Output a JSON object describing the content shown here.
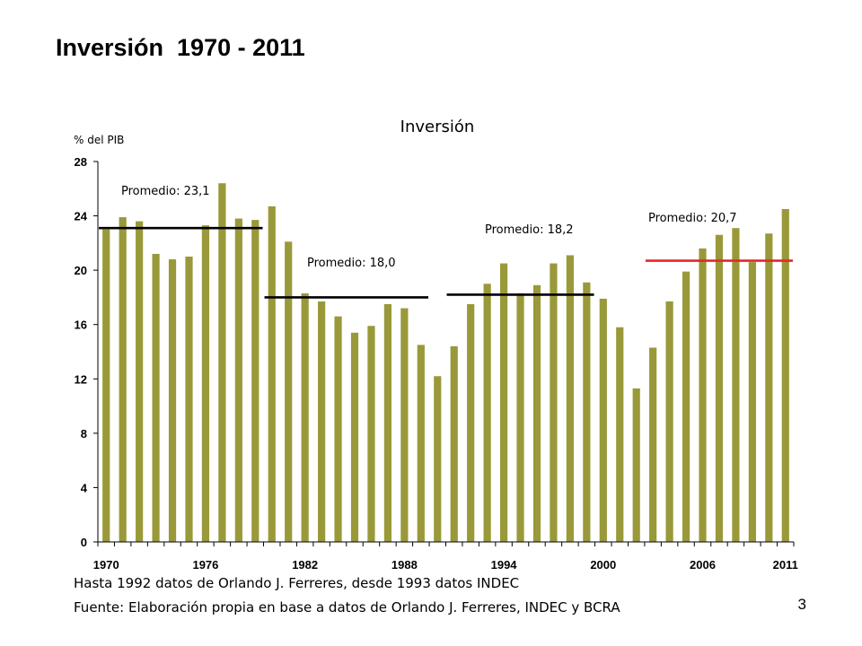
{
  "slide": {
    "title": "Inversión  1970 - 2011",
    "page_number": "3",
    "note_1": "Hasta 1992 datos de Orlando J. Ferreres, desde 1993 datos INDEC",
    "note_2": "Fuente: Elaboración propia en base a datos de Orlando J. Ferreres, INDEC y BCRA"
  },
  "chart_data": {
    "type": "bar",
    "title": "Inversión",
    "ylabel": "% del PIB",
    "xlabel": "",
    "ylim": [
      0,
      28
    ],
    "yticks": [
      0,
      4,
      8,
      12,
      16,
      20,
      24,
      28
    ],
    "xtick_labels": [
      "1970",
      "1976",
      "1982",
      "1988",
      "1994",
      "2000",
      "2006",
      "2011"
    ],
    "categories": [
      1970,
      1971,
      1972,
      1973,
      1974,
      1975,
      1976,
      1977,
      1978,
      1979,
      1980,
      1981,
      1982,
      1983,
      1984,
      1985,
      1986,
      1987,
      1988,
      1989,
      1990,
      1991,
      1992,
      1993,
      1994,
      1995,
      1996,
      1997,
      1998,
      1999,
      2000,
      2001,
      2002,
      2003,
      2004,
      2005,
      2006,
      2007,
      2008,
      2009,
      2010,
      2011
    ],
    "values": [
      23.0,
      23.9,
      23.6,
      21.2,
      20.8,
      21.0,
      23.3,
      26.4,
      23.8,
      23.7,
      24.7,
      22.1,
      18.3,
      17.7,
      16.6,
      15.4,
      15.9,
      17.5,
      17.2,
      14.5,
      12.2,
      14.4,
      17.5,
      19.0,
      20.5,
      18.3,
      18.9,
      20.5,
      21.1,
      19.1,
      17.9,
      15.8,
      11.3,
      14.3,
      17.7,
      19.9,
      21.6,
      22.6,
      23.1,
      20.6,
      22.7,
      24.5
    ],
    "bar_color": "#99993A",
    "annotations": [
      {
        "text": "Promedio: 23,1",
        "value": 23.1,
        "from": 1970,
        "to": 1979,
        "color": "#000000"
      },
      {
        "text": "Promedio: 18,0",
        "value": 18.0,
        "from": 1980,
        "to": 1989,
        "color": "#000000"
      },
      {
        "text": "Promedio: 18,2",
        "value": 18.2,
        "from": 1991,
        "to": 1999,
        "color": "#000000"
      },
      {
        "text": "Promedio: 20,7",
        "value": 20.7,
        "from": 2003,
        "to": 2011,
        "color": "#E8262B"
      }
    ]
  }
}
